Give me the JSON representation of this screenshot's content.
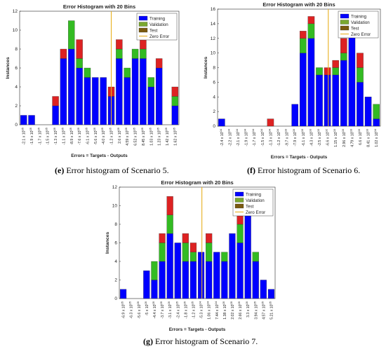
{
  "colors": {
    "training": "#0000ff",
    "validation": "#33bb22",
    "test": "#dd2222",
    "zero_error": "#e8b020",
    "validation_legend": "#7aa830",
    "test_legend": "#7a5a10"
  },
  "chart_data": [
    {
      "id": "e",
      "type": "bar",
      "title": "Error Histogram with 20 Bins",
      "xlabel": "Errors = Targets - Outputs",
      "ylabel": "Instances",
      "ylim": [
        0,
        12
      ],
      "yticks": [
        "0",
        "2",
        "4",
        "6",
        "8",
        "10",
        "12"
      ],
      "categories": [
        "-2.1 x 10^05",
        "-1.9 x 10^05",
        "-1.7 x 10^05",
        "-1.5 x 10^05",
        "-1.3 x 10^05",
        "-1.1 x 10^05",
        "-8.9 x 10^05",
        "-7.6 x 10^05",
        "-6.1 x 10^05",
        "-5.6 x 10^05",
        "-4.0 x 10^05",
        "-1.2 x 10^05",
        "2.6 x 10^05",
        "4.59 x 10^05",
        "6.52 x 10^05",
        "8.45 x 10^05",
        "1.03 x 10^05",
        "1.23 x 10^05",
        "1.42 x 10^05",
        "1.62 x 10^05"
      ],
      "series": [
        {
          "name": "Training",
          "values": [
            1,
            1,
            0,
            0,
            2,
            7,
            8,
            6,
            5,
            5,
            5,
            3,
            7,
            5,
            7,
            7,
            4,
            6,
            0,
            2
          ]
        },
        {
          "name": "Validation",
          "values": [
            0,
            0,
            0,
            0,
            0,
            0,
            3,
            1,
            1,
            0,
            0,
            0,
            1,
            1,
            1,
            1,
            1,
            0,
            0,
            1
          ]
        },
        {
          "name": "Test",
          "values": [
            0,
            0,
            0,
            0,
            1,
            1,
            0,
            2,
            0,
            0,
            0,
            1,
            1,
            0,
            0,
            1,
            0,
            1,
            0,
            1
          ]
        }
      ],
      "zero_error_index": 11.5,
      "legend": [
        "Training",
        "Validation",
        "Test",
        "Zero Error"
      ],
      "caption_label": "(e)",
      "caption_text": " Error histogram of Scenario 5."
    },
    {
      "id": "f",
      "type": "bar",
      "title": "Error Histogram with 20 Bins",
      "xlabel": "Errors = Targets - Outputs",
      "ylabel": "Instances",
      "ylim": [
        0,
        16
      ],
      "yticks": [
        "0",
        "2",
        "4",
        "6",
        "8",
        "10",
        "12",
        "14",
        "16"
      ],
      "categories": [
        "-2.4 x 10^04",
        "-2.2 x 10^04",
        "-2.1 x 10^04",
        "-1.9 x 10^04",
        "-1.7 x 10^04",
        "-1.5 x 10^04",
        "-1.3 x 10^04",
        "-1.2 x 10^04",
        "-9.7 x 10^03",
        "-7.9 x 10^03",
        "-6.1 x 10^03",
        "-4.3 x 10^03",
        "-2.5 x 10^03",
        "-6.6 x 10^02",
        "1.15 x 10^03",
        "2.96 x 10^03",
        "4.79 x 10^03",
        "6.6 x 10^03",
        "8.41 x 10^03",
        "1.02 x 10^04"
      ],
      "series": [
        {
          "name": "Training",
          "values": [
            1,
            0,
            0,
            0,
            0,
            0,
            0,
            0,
            0,
            3,
            10,
            12,
            7,
            7,
            7,
            9,
            13,
            6,
            4,
            1
          ]
        },
        {
          "name": "Validation",
          "values": [
            0,
            0,
            0,
            0,
            0,
            0,
            0,
            0,
            0,
            0,
            2,
            2,
            1,
            0,
            1,
            1,
            1,
            2,
            0,
            2
          ]
        },
        {
          "name": "Test",
          "values": [
            0,
            0,
            0,
            0,
            0,
            0,
            1,
            0,
            0,
            0,
            1,
            1,
            0,
            1,
            1,
            2,
            1,
            2,
            0,
            0
          ]
        }
      ],
      "zero_error_index": 13.6,
      "legend": [
        "Training",
        "Validation",
        "Test",
        "Zero Error"
      ],
      "caption_label": "(f)",
      "caption_text": " Error histogram of Scenario 6."
    },
    {
      "id": "g",
      "type": "bar",
      "title": "Error Histogram with 20 Bins",
      "xlabel": "Errors = Targets - Outputs",
      "ylabel": "Instances",
      "ylim": [
        0,
        12
      ],
      "yticks": [
        "0",
        "2",
        "4",
        "6",
        "8",
        "10",
        "12"
      ],
      "categories": [
        "-6.9 x 10^05",
        "-6.3 x 10^05",
        "-5.6 x 10^05",
        "-5 x 10^05",
        "-4.4 x 10^05",
        "-3.7 x 10^05",
        "-3.1 x 10^05",
        "-2.4 x 10^05",
        "-1.8 x 10^05",
        "-1.2 x 10^05",
        "-5.3 x 10^04",
        "1.06 x 10^04",
        "7.44 x 10^04",
        "1.38 x 10^05",
        "2.02 x 10^05",
        "2.66 x 10^05",
        "3.3 x 10^05",
        "3.94 x 10^05",
        "4.57 x 10^05",
        "5.21 x 10^05"
      ],
      "series": [
        {
          "name": "Training",
          "values": [
            1,
            0,
            0,
            3,
            2,
            4,
            7,
            6,
            4,
            4,
            5,
            4,
            5,
            4,
            7,
            6,
            9,
            4,
            2,
            1
          ]
        },
        {
          "name": "Validation",
          "values": [
            0,
            0,
            0,
            0,
            2,
            2,
            2,
            0,
            2,
            1,
            0,
            2,
            0,
            1,
            0,
            2,
            1,
            1,
            0,
            0
          ]
        },
        {
          "name": "Test",
          "values": [
            0,
            0,
            0,
            0,
            0,
            1,
            2,
            0,
            1,
            1,
            0,
            1,
            0,
            0,
            0,
            2,
            0,
            0,
            0,
            0
          ]
        }
      ],
      "zero_error_index": 10.6,
      "legend": [
        "Training",
        "Validation",
        "Test",
        "Zero Error"
      ],
      "caption_label": "(g)",
      "caption_text": " Error histogram of Scenario 7."
    }
  ]
}
